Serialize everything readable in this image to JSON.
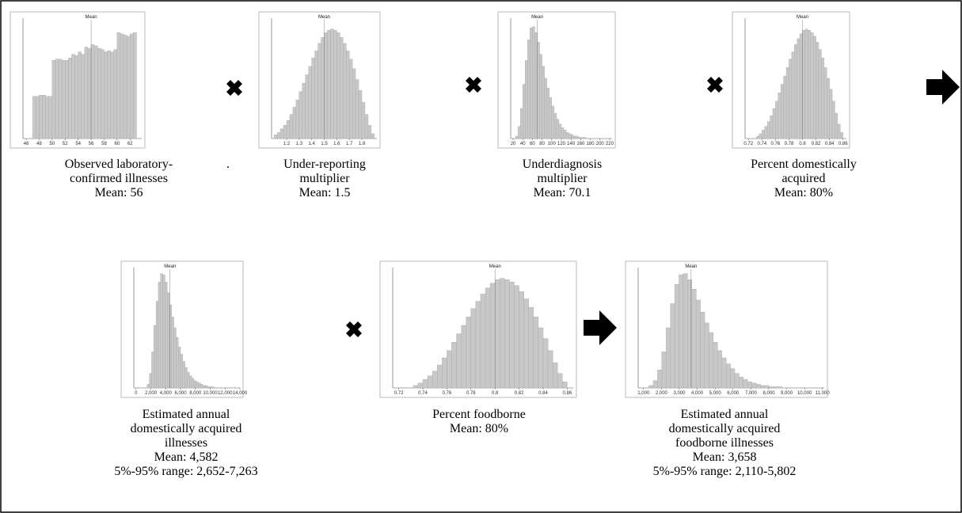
{
  "panels": [
    {
      "caption": [
        "Observed laboratory-",
        "confirmed illnesses",
        "Mean: 56"
      ],
      "chart": {
        "type": "histogram",
        "mean_label": "Mean",
        "mean": 56,
        "xlim": [
          45.5,
          63.8
        ],
        "ylim": [
          0,
          100
        ],
        "xticks": [
          46,
          48,
          50,
          52,
          54,
          56,
          58,
          60,
          62
        ],
        "bins": [
          47,
          47.5,
          48,
          48.5,
          49,
          49.5,
          50,
          50.5,
          51,
          51.5,
          52,
          52.5,
          53,
          53.5,
          54,
          54.5,
          55,
          55.5,
          56,
          56.5,
          57,
          57.5,
          58,
          58.5,
          59,
          59.5,
          60,
          60.5,
          61,
          61.5,
          62,
          62.5,
          63
        ],
        "values": [
          35,
          35,
          36,
          36,
          35,
          35,
          65,
          66,
          66,
          65,
          65,
          67,
          70,
          69,
          72,
          70,
          76,
          75,
          78,
          77,
          75,
          74,
          72,
          73,
          72,
          74,
          88,
          87,
          86,
          85,
          87,
          88
        ]
      }
    },
    {
      "caption": [
        "Under-reporting",
        "multiplier",
        "Mean: 1.5"
      ],
      "chart": {
        "type": "histogram",
        "mean_label": "Mean",
        "mean": 1.5,
        "xlim": [
          1.08,
          1.92
        ],
        "ylim": [
          0,
          100
        ],
        "xticks": [
          1.2,
          1.3,
          1.4,
          1.5,
          1.6,
          1.7,
          1.8
        ],
        "bins": [
          1.1,
          1.125,
          1.15,
          1.175,
          1.2,
          1.225,
          1.25,
          1.275,
          1.3,
          1.325,
          1.35,
          1.375,
          1.4,
          1.425,
          1.45,
          1.475,
          1.5,
          1.525,
          1.55,
          1.575,
          1.6,
          1.625,
          1.65,
          1.675,
          1.7,
          1.725,
          1.75,
          1.775,
          1.8,
          1.825,
          1.85,
          1.875,
          1.9
        ],
        "values": [
          3,
          5,
          8,
          11,
          15,
          20,
          26,
          32,
          39,
          46,
          53,
          60,
          67,
          73,
          79,
          84,
          88,
          90,
          91,
          90,
          88,
          84,
          79,
          73,
          66,
          58,
          49,
          40,
          30,
          20,
          11,
          4
        ]
      }
    },
    {
      "caption": [
        "Underdiagnosis",
        "multiplier",
        "Mean: 70.1"
      ],
      "chart": {
        "type": "histogram",
        "mean_label": "Mean",
        "mean": 70.1,
        "xlim": [
          15,
          225
        ],
        "ylim": [
          0,
          100
        ],
        "xticks": [
          20,
          40,
          60,
          80,
          100,
          120,
          140,
          160,
          180,
          200,
          220
        ],
        "bins": [
          25,
          30,
          35,
          40,
          45,
          50,
          55,
          60,
          65,
          70,
          75,
          80,
          85,
          90,
          95,
          100,
          105,
          110,
          115,
          120,
          125,
          130,
          135,
          140,
          145,
          150,
          155,
          160,
          165,
          170,
          175,
          180,
          185
        ],
        "values": [
          2,
          10,
          25,
          45,
          65,
          82,
          92,
          93,
          88,
          80,
          70,
          60,
          50,
          42,
          34,
          27,
          21,
          16,
          12,
          9,
          7,
          5,
          4,
          3,
          2,
          2,
          1,
          1,
          1,
          0,
          0,
          0
        ]
      }
    },
    {
      "caption": [
        "Percent domestically",
        "acquired",
        "Mean: 80%"
      ],
      "chart": {
        "type": "histogram",
        "mean_label": "Mean",
        "mean": 0.8,
        "xlim": [
          0.715,
          0.865
        ],
        "ylim": [
          0,
          100
        ],
        "xticks": [
          0.72,
          0.74,
          0.76,
          0.78,
          0.8,
          0.82,
          0.84,
          0.86
        ],
        "bins": [
          0.732,
          0.736,
          0.74,
          0.744,
          0.748,
          0.752,
          0.756,
          0.76,
          0.764,
          0.768,
          0.772,
          0.776,
          0.78,
          0.784,
          0.788,
          0.792,
          0.796,
          0.8,
          0.804,
          0.808,
          0.812,
          0.816,
          0.82,
          0.824,
          0.828,
          0.832,
          0.836,
          0.84,
          0.844,
          0.848,
          0.852,
          0.856,
          0.86
        ],
        "values": [
          2,
          4,
          7,
          10,
          14,
          19,
          25,
          31,
          38,
          45,
          52,
          59,
          66,
          72,
          78,
          83,
          87,
          90,
          91,
          90,
          88,
          85,
          80,
          74,
          67,
          59,
          50,
          41,
          31,
          21,
          12,
          5
        ]
      }
    },
    {
      "caption": [
        "Estimated annual",
        "domestically acquired",
        "illnesses",
        "Mean: 4,582",
        "5%-95% range: 2,652-7,263"
      ],
      "chart": {
        "type": "histogram",
        "mean_label": "Mean",
        "mean": 4582,
        "xlim": [
          -300,
          14000
        ],
        "ylim": [
          0,
          100
        ],
        "xticks": [
          0,
          {
            "value": 2000,
            "label": "2,000"
          },
          {
            "value": 4000,
            "label": "4,000"
          },
          {
            "value": 6000,
            "label": "6,000"
          },
          {
            "value": 8000,
            "label": "8,000"
          },
          {
            "value": 10000,
            "label": "10,000"
          },
          {
            "value": 12000,
            "label": "12,000"
          },
          {
            "value": 14000,
            "label": "14,000"
          }
        ],
        "bins": [
          1500,
          1800,
          2100,
          2400,
          2700,
          3000,
          3300,
          3600,
          3900,
          4200,
          4500,
          4800,
          5100,
          5400,
          5700,
          6000,
          6300,
          6600,
          6900,
          7200,
          7500,
          7800,
          8100,
          8400,
          8700,
          9000,
          9300,
          9600,
          9900,
          10200,
          10500,
          10800,
          11100
        ],
        "values": [
          3,
          12,
          30,
          52,
          72,
          88,
          95,
          94,
          88,
          79,
          69,
          59,
          50,
          42,
          34,
          28,
          22,
          17,
          13,
          10,
          8,
          6,
          5,
          4,
          3,
          2,
          2,
          1,
          1,
          1,
          0,
          0
        ]
      }
    },
    {
      "caption": [
        "Percent foodborne",
        "Mean: 80%"
      ],
      "chart": {
        "type": "histogram",
        "mean_label": "Mean",
        "mean": 0.8,
        "xlim": [
          0.715,
          0.865
        ],
        "ylim": [
          0,
          100
        ],
        "xticks": [
          0.72,
          0.74,
          0.76,
          0.78,
          0.8,
          0.82,
          0.84,
          0.86
        ],
        "bins": [
          0.732,
          0.736,
          0.74,
          0.744,
          0.748,
          0.752,
          0.756,
          0.76,
          0.764,
          0.768,
          0.772,
          0.776,
          0.78,
          0.784,
          0.788,
          0.792,
          0.796,
          0.8,
          0.804,
          0.808,
          0.812,
          0.816,
          0.82,
          0.824,
          0.828,
          0.832,
          0.836,
          0.84,
          0.844,
          0.848,
          0.852,
          0.856,
          0.86
        ],
        "values": [
          2,
          4,
          7,
          10,
          14,
          19,
          25,
          31,
          38,
          45,
          52,
          59,
          66,
          72,
          78,
          83,
          87,
          90,
          91,
          90,
          88,
          85,
          80,
          74,
          67,
          59,
          50,
          41,
          31,
          21,
          12,
          5
        ]
      }
    },
    {
      "caption": [
        "Estimated annual",
        "domestically acquired",
        "foodborne illnesses",
        "Mean: 3,658",
        "5%-95% range: 2,110-5,802"
      ],
      "chart": {
        "type": "histogram",
        "mean_label": "Mean",
        "mean": 3658,
        "xlim": [
          700,
          11100
        ],
        "ylim": [
          0,
          100
        ],
        "xticks": [
          {
            "value": 1000,
            "label": "1,000"
          },
          {
            "value": 2000,
            "label": "2,000"
          },
          {
            "value": 3000,
            "label": "3,000"
          },
          {
            "value": 4000,
            "label": "4,000"
          },
          {
            "value": 5000,
            "label": "5,000"
          },
          {
            "value": 6000,
            "label": "6,000"
          },
          {
            "value": 7000,
            "label": "7,000"
          },
          {
            "value": 8000,
            "label": "8,000"
          },
          {
            "value": 9000,
            "label": "9,000"
          },
          {
            "value": 10000,
            "label": "10,000"
          },
          {
            "value": 11000,
            "label": "11,000"
          }
        ],
        "bins": [
          1300,
          1540,
          1780,
          2020,
          2260,
          2500,
          2740,
          2980,
          3220,
          3460,
          3700,
          3940,
          4180,
          4420,
          4660,
          4900,
          5140,
          5380,
          5620,
          5860,
          6100,
          6340,
          6580,
          6820,
          7060,
          7300,
          7540,
          7780,
          8020,
          8260,
          8500,
          8740,
          8980
        ],
        "values": [
          2,
          6,
          15,
          30,
          50,
          70,
          86,
          94,
          95,
          90,
          82,
          73,
          63,
          54,
          46,
          38,
          31,
          25,
          20,
          16,
          12,
          9,
          7,
          5,
          4,
          3,
          2,
          2,
          1,
          1,
          1,
          0
        ]
      }
    }
  ],
  "annotation": "."
}
